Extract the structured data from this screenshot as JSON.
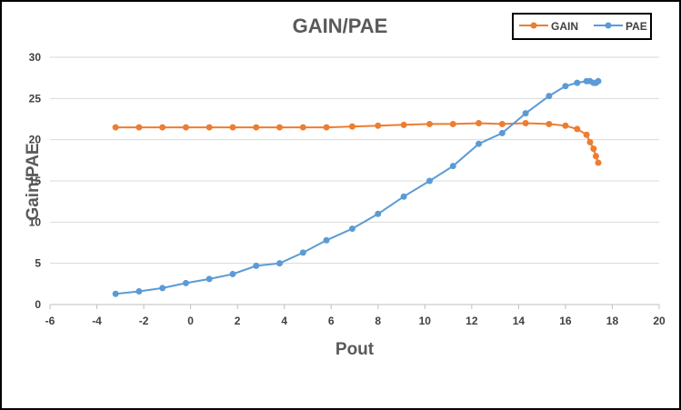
{
  "chart_data": {
    "type": "line",
    "title": "GAIN/PAE",
    "xlabel": "Pout",
    "ylabel": "Gain/PAE",
    "xlim": [
      -6,
      20
    ],
    "ylim": [
      0,
      30
    ],
    "x_ticks": [
      "-6",
      "-4",
      "-2",
      "0",
      "2",
      "4",
      "6",
      "8",
      "10",
      "12",
      "14",
      "16",
      "18",
      "20"
    ],
    "y_ticks": [
      "0",
      "5",
      "10",
      "15",
      "20",
      "25",
      "30"
    ],
    "grid": "horizontal",
    "legend_position": "top-right",
    "series": [
      {
        "name": "GAIN",
        "color": "#ED7D31",
        "points": [
          [
            -3.2,
            21.5
          ],
          [
            -2.2,
            21.5
          ],
          [
            -1.2,
            21.5
          ],
          [
            -0.2,
            21.5
          ],
          [
            0.8,
            21.5
          ],
          [
            1.8,
            21.5
          ],
          [
            2.8,
            21.5
          ],
          [
            3.8,
            21.5
          ],
          [
            4.8,
            21.5
          ],
          [
            5.8,
            21.5
          ],
          [
            6.9,
            21.6
          ],
          [
            8.0,
            21.7
          ],
          [
            9.1,
            21.8
          ],
          [
            10.2,
            21.9
          ],
          [
            11.2,
            21.9
          ],
          [
            12.3,
            22.0
          ],
          [
            13.3,
            21.9
          ],
          [
            14.3,
            22.0
          ],
          [
            15.3,
            21.9
          ],
          [
            16.0,
            21.7
          ],
          [
            16.5,
            21.3
          ],
          [
            16.9,
            20.6
          ],
          [
            17.05,
            19.7
          ],
          [
            17.2,
            18.9
          ],
          [
            17.3,
            18.0
          ],
          [
            17.4,
            17.2
          ]
        ]
      },
      {
        "name": "PAE",
        "color": "#5B9BD5",
        "points": [
          [
            -3.2,
            1.3
          ],
          [
            -2.2,
            1.6
          ],
          [
            -1.2,
            2.0
          ],
          [
            -0.2,
            2.6
          ],
          [
            0.8,
            3.1
          ],
          [
            1.8,
            3.7
          ],
          [
            2.8,
            4.7
          ],
          [
            3.8,
            5.0
          ],
          [
            4.8,
            6.3
          ],
          [
            5.8,
            7.8
          ],
          [
            6.9,
            9.2
          ],
          [
            8.0,
            11.0
          ],
          [
            9.1,
            13.1
          ],
          [
            10.2,
            15.0
          ],
          [
            11.2,
            16.8
          ],
          [
            12.3,
            19.5
          ],
          [
            13.3,
            20.8
          ],
          [
            14.3,
            23.2
          ],
          [
            15.3,
            25.3
          ],
          [
            16.0,
            26.5
          ],
          [
            16.5,
            26.9
          ],
          [
            16.9,
            27.1
          ],
          [
            17.05,
            27.1
          ],
          [
            17.2,
            26.9
          ],
          [
            17.3,
            26.9
          ],
          [
            17.4,
            27.1
          ]
        ]
      }
    ]
  }
}
